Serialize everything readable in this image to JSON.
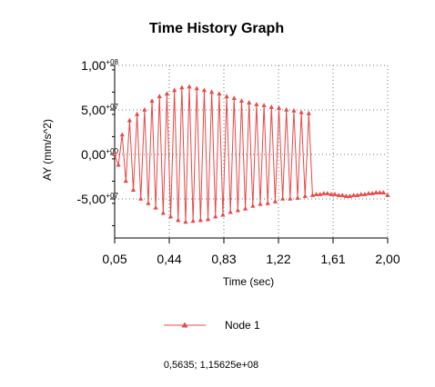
{
  "chart_data": {
    "type": "line",
    "title": "Time History Graph",
    "xlabel": "Time (sec)",
    "ylabel": "AY (mm/s^2)",
    "xlim": [
      0.05,
      2.0
    ],
    "ylim": [
      -100000000,
      100000000
    ],
    "grid": true,
    "legend_position": "bottom",
    "x_ticks": [
      "0,05",
      "0,44",
      "0,83",
      "1,22",
      "1,61",
      "2,00"
    ],
    "y_ticks": [
      {
        "mantissa": "1,00",
        "exp": "+08"
      },
      {
        "mantissa": "5,00",
        "exp": "+07"
      },
      {
        "mantissa": "0,00",
        "exp": "+00"
      },
      {
        "mantissa": "-5,00",
        "exp": "+07"
      }
    ],
    "series": [
      {
        "name": "Node 1",
        "color": "#e84848",
        "x": [
          0.05,
          0.0767,
          0.1033,
          0.13,
          0.1567,
          0.1833,
          0.21,
          0.2367,
          0.2633,
          0.29,
          0.3167,
          0.3433,
          0.37,
          0.3967,
          0.4233,
          0.45,
          0.4767,
          0.5033,
          0.53,
          0.5567,
          0.5833,
          0.61,
          0.6367,
          0.6633,
          0.69,
          0.7167,
          0.7433,
          0.77,
          0.7967,
          0.8233,
          0.85,
          0.8767,
          0.9033,
          0.93,
          0.9567,
          0.9833,
          1.01,
          1.0367,
          1.0633,
          1.09,
          1.1167,
          1.1433,
          1.17,
          1.1967,
          1.2233,
          1.25,
          1.2767,
          1.3033,
          1.33,
          1.3567,
          1.3833,
          1.41,
          1.4367,
          1.4633,
          1.49,
          1.5167,
          1.5433,
          1.57,
          1.5967,
          1.6233,
          1.65,
          1.6767,
          1.7033,
          1.73,
          1.7567,
          1.7833,
          1.81,
          1.8367,
          1.8633,
          1.89,
          1.9167,
          1.9433,
          1.97,
          2.0
        ],
        "y": [
          0,
          -12000000,
          22000000,
          -30000000,
          38000000,
          -40000000,
          45000000,
          -50000000,
          50000000,
          -55000000,
          60000000,
          -60000000,
          65000000,
          -66000000,
          68000000,
          -70000000,
          72000000,
          -74000000,
          75000000,
          -76000000,
          76000000,
          -75000000,
          74000000,
          -74000000,
          72000000,
          -73000000,
          70000000,
          -70000000,
          68000000,
          -68000000,
          65000000,
          -65000000,
          63000000,
          -63000000,
          60000000,
          -61000000,
          58000000,
          -58000000,
          56000000,
          -56000000,
          55000000,
          -55000000,
          53000000,
          -53000000,
          52000000,
          -50000000,
          50000000,
          -50000000,
          49000000,
          -49000000,
          47000000,
          -47000000,
          46000000,
          -46000000,
          -45000000,
          -45000000,
          -44000000,
          -44000000,
          -45000000,
          -45000000,
          -46000000,
          -46000000,
          -47000000,
          -47000000,
          -46000000,
          -46000000,
          -45000000,
          -45000000,
          -44000000,
          -44000000,
          -43000000,
          -43000000,
          -43000000,
          -46000000
        ]
      }
    ]
  },
  "status": {
    "coordinate_readout": "0,5635; 1,15625e+08"
  }
}
